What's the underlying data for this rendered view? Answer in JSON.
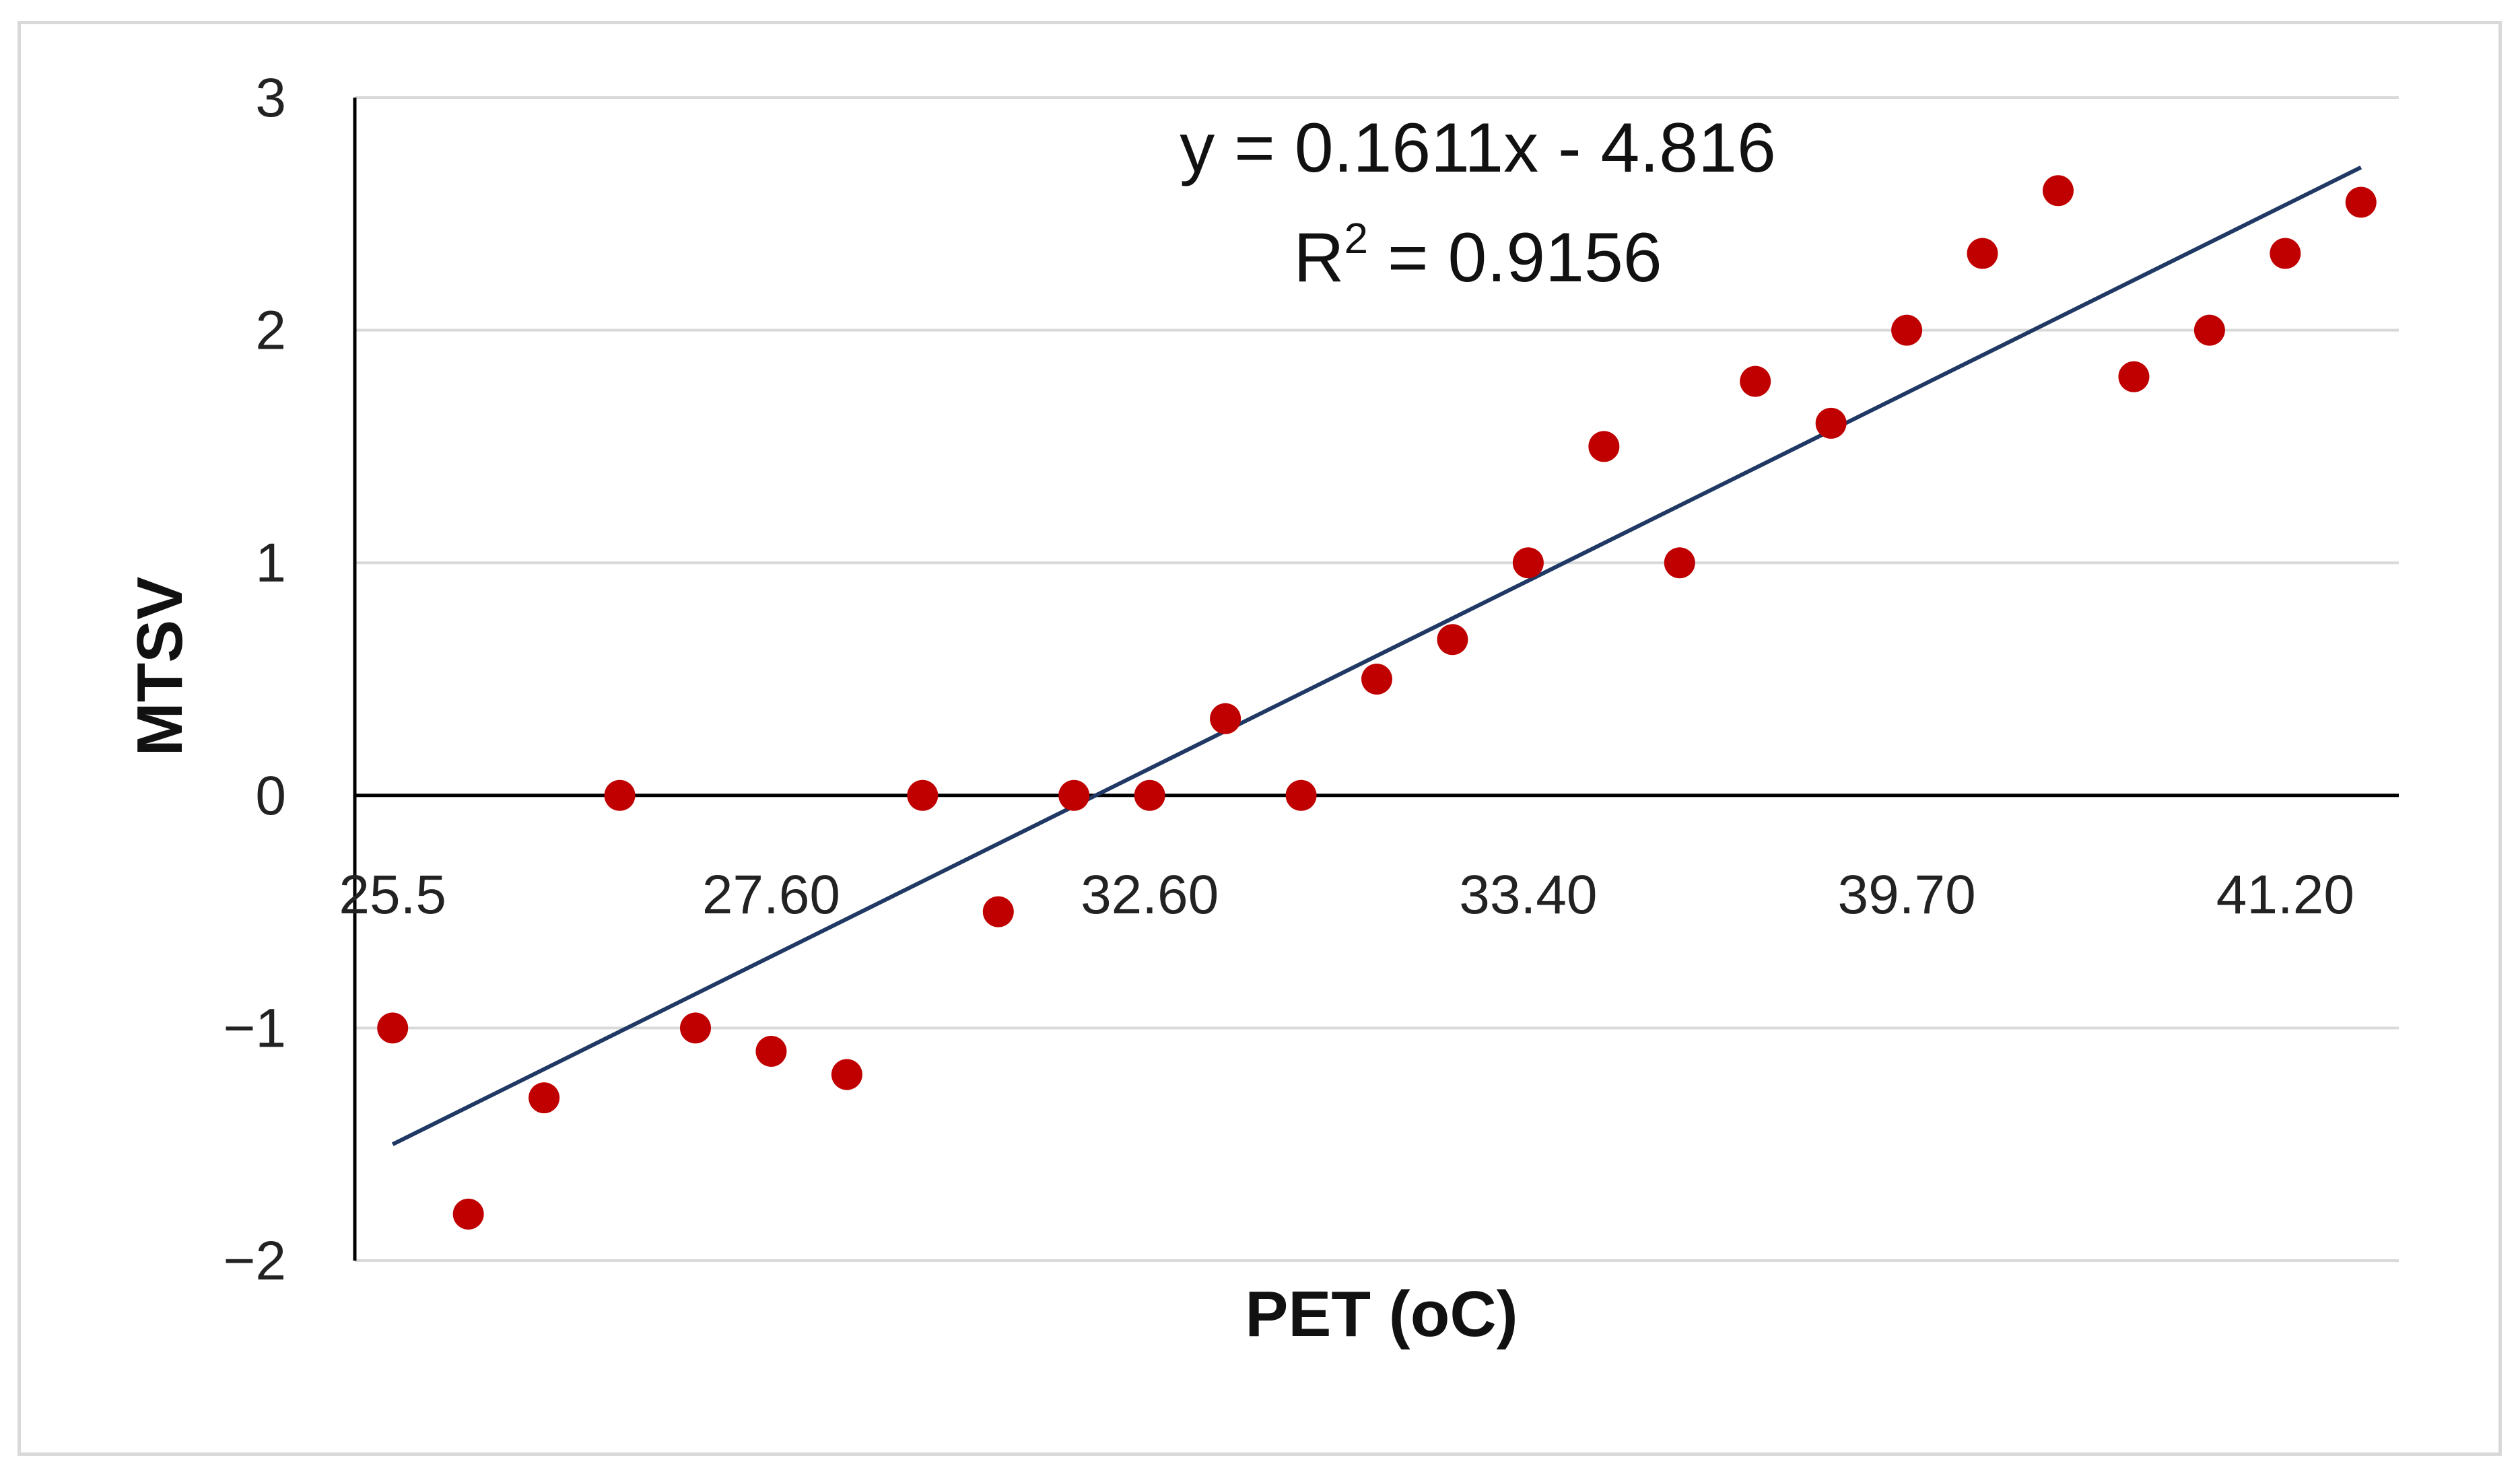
{
  "chart_data": {
    "type": "scatter",
    "title": "",
    "xlabel": "PET (oC)",
    "ylabel": "MTSV",
    "ylim": [
      -2,
      3
    ],
    "y_ticks": [
      3,
      2,
      1,
      0,
      -1,
      -2
    ],
    "y_tick_labels": [
      "3",
      "2",
      "1",
      "0",
      "−1",
      "−2"
    ],
    "x_tick_labels": [
      "25.5",
      "27.60",
      "32.60",
      "33.40",
      "39.70",
      "41.20"
    ],
    "x_tick_points": [
      1,
      6,
      11,
      16,
      21,
      26
    ],
    "x_range": [
      0.5,
      27.5
    ],
    "grid": true,
    "marker_color": "#c00000",
    "trendline_color": "#1f3864",
    "series": [
      {
        "name": "MTSV",
        "x": [
          1,
          2,
          3,
          4,
          5,
          6,
          7,
          8,
          9,
          10,
          11,
          12,
          13,
          14,
          15,
          16,
          17,
          18,
          19,
          20,
          21,
          22,
          23,
          24,
          25,
          26,
          27
        ],
        "y": [
          -1,
          -1.8,
          -1.3,
          0,
          -1,
          -1.1,
          -1.2,
          0,
          -0.5,
          0,
          0,
          0.33,
          0,
          0.5,
          0.67,
          1,
          1.5,
          1,
          1.78,
          1.6,
          2,
          2.33,
          2.6,
          1.8,
          2,
          2.33,
          2.55
        ]
      }
    ],
    "trendline": {
      "x_start": 1,
      "x_end": 27,
      "y_start": -1.5,
      "y_end": 2.7,
      "equation": "y = 0.1611x - 4.816",
      "r2_prefix": "R",
      "r2_sup": "2",
      "r2_suffix": " = 0.9156"
    }
  }
}
